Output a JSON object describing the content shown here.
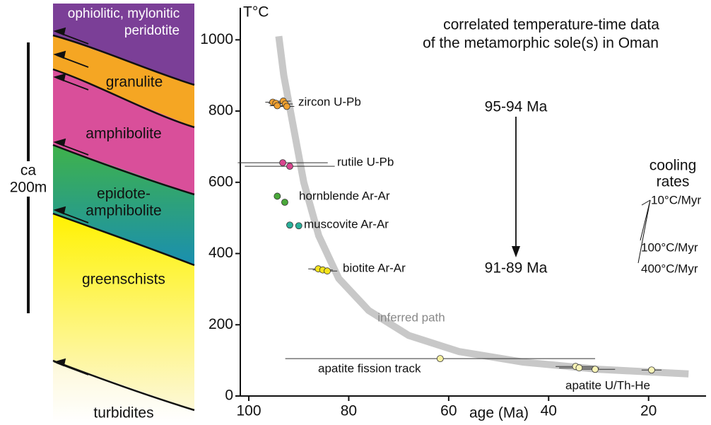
{
  "chart_data": {
    "type": "scatter",
    "title": [
      "correlated temperature-time data",
      "of the metamorphic sole(s) in Oman"
    ],
    "x_label": "age (Ma)",
    "y_label": "T°C",
    "xlim": [
      101.7,
      8.5
    ],
    "ylim": [
      0,
      1090
    ],
    "xticks": [
      100,
      80,
      60,
      40,
      20
    ],
    "yticks": [
      0,
      200,
      400,
      600,
      800,
      1000
    ],
    "series": [
      {
        "name": "zircon U-Pb",
        "color": "#f0a030",
        "x": [
          95.2,
          94.6,
          94.3,
          93.1,
          92.7,
          92.4
        ],
        "values": [
          825,
          822,
          815,
          828,
          820,
          813
        ],
        "xerr": [
          1.5,
          1.5,
          1.5,
          1.5,
          1.5,
          1.5
        ]
      },
      {
        "name": "rutile U-Pb",
        "color": "#d8468f",
        "x": [
          93.2,
          91.8
        ],
        "values": [
          655,
          645
        ],
        "xerr": [
          9,
          9
        ]
      },
      {
        "name": "hornblende Ar-Ar",
        "color": "#4aa83a",
        "x": [
          94.3,
          92.8
        ],
        "values": [
          561,
          544
        ]
      },
      {
        "name": "muscovite Ar-Ar",
        "color": "#2ab09a",
        "x": [
          91.8,
          90.0
        ],
        "values": [
          480,
          478
        ]
      },
      {
        "name": "biotite Ar-Ar",
        "color": "#f5e31c",
        "x": [
          86.1,
          85.2,
          84.3
        ],
        "values": [
          357,
          354,
          351
        ],
        "xerr": [
          2,
          2,
          2
        ]
      },
      {
        "name": "apatite fission track",
        "color": "#f8f0a0",
        "x": [
          61.7
        ],
        "values": [
          105
        ],
        "xerr": [
          31
        ]
      },
      {
        "name": "apatite U/Th-He",
        "color": "#faf5b8",
        "x": [
          34.6,
          33.9,
          30.7,
          19.4
        ],
        "values": [
          83,
          79,
          75,
          73
        ],
        "xerr": [
          4,
          4,
          4,
          2
        ]
      }
    ],
    "inferred_path": {
      "label": "inferred path",
      "color": "#c8c8c8",
      "x": [
        94,
        93,
        91,
        89,
        86,
        82,
        76,
        68,
        58,
        45,
        30,
        12
      ],
      "values": [
        1010,
        900,
        750,
        600,
        450,
        330,
        240,
        170,
        125,
        95,
        75,
        62
      ]
    },
    "annotations": [
      "95-94 Ma",
      "91-89 Ma",
      "cooling",
      "rates",
      "10°C/Myr",
      "100°C/Myr",
      "400°C/Myr"
    ]
  },
  "column": {
    "layers": [
      [
        "ophiolitic, mylonitic",
        "peridotite"
      ],
      [
        "granulite"
      ],
      [
        "amphibolite"
      ],
      [
        "epidote-",
        "amphibolite"
      ],
      [
        "greenschists"
      ],
      [
        "turbidites"
      ]
    ],
    "scale_label": [
      "ca",
      "200m"
    ]
  }
}
